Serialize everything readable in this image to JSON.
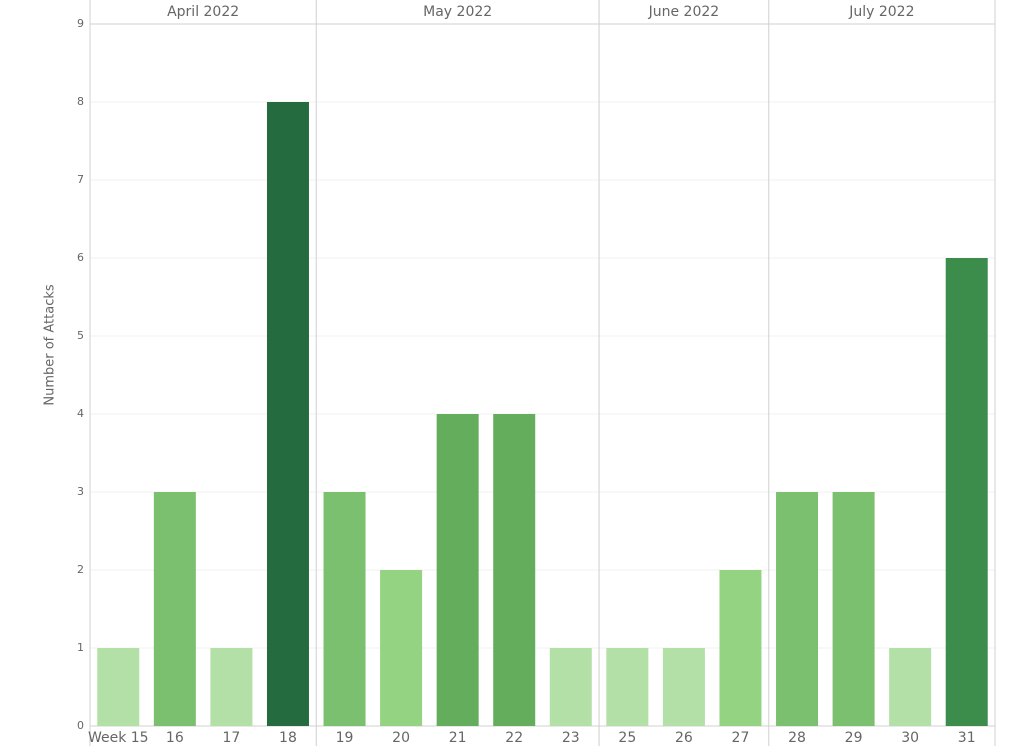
{
  "chart_data": {
    "type": "bar",
    "y_label": "Number of Attacks",
    "groups": [
      {
        "name": "April 2022",
        "categories": [
          "Week 15",
          "16",
          "17",
          "18"
        ],
        "values": [
          1,
          3,
          1,
          8
        ],
        "colors": [
          "#b3e0a6",
          "#7bc06f",
          "#b3e0a6",
          "#246b3f"
        ]
      },
      {
        "name": "May 2022",
        "categories": [
          "19",
          "20",
          "21",
          "22",
          "23"
        ],
        "values": [
          3,
          2,
          4,
          4,
          1
        ],
        "colors": [
          "#7bc06f",
          "#94d381",
          "#64ad5c",
          "#64ad5c",
          "#b3e0a6"
        ]
      },
      {
        "name": "June 2022",
        "categories": [
          "25",
          "26",
          "27"
        ],
        "values": [
          1,
          1,
          2
        ],
        "colors": [
          "#b3e0a6",
          "#b3e0a6",
          "#94d381"
        ]
      },
      {
        "name": "July 2022",
        "categories": [
          "28",
          "29",
          "30",
          "31"
        ],
        "values": [
          3,
          3,
          1,
          6
        ],
        "colors": [
          "#7bc06f",
          "#7bc06f",
          "#b3e0a6",
          "#3c8c4c"
        ]
      }
    ],
    "ylim": [
      0,
      9
    ],
    "yticks": [
      0,
      1,
      2,
      3,
      4,
      5,
      6,
      7,
      8,
      9
    ],
    "grid": true
  }
}
